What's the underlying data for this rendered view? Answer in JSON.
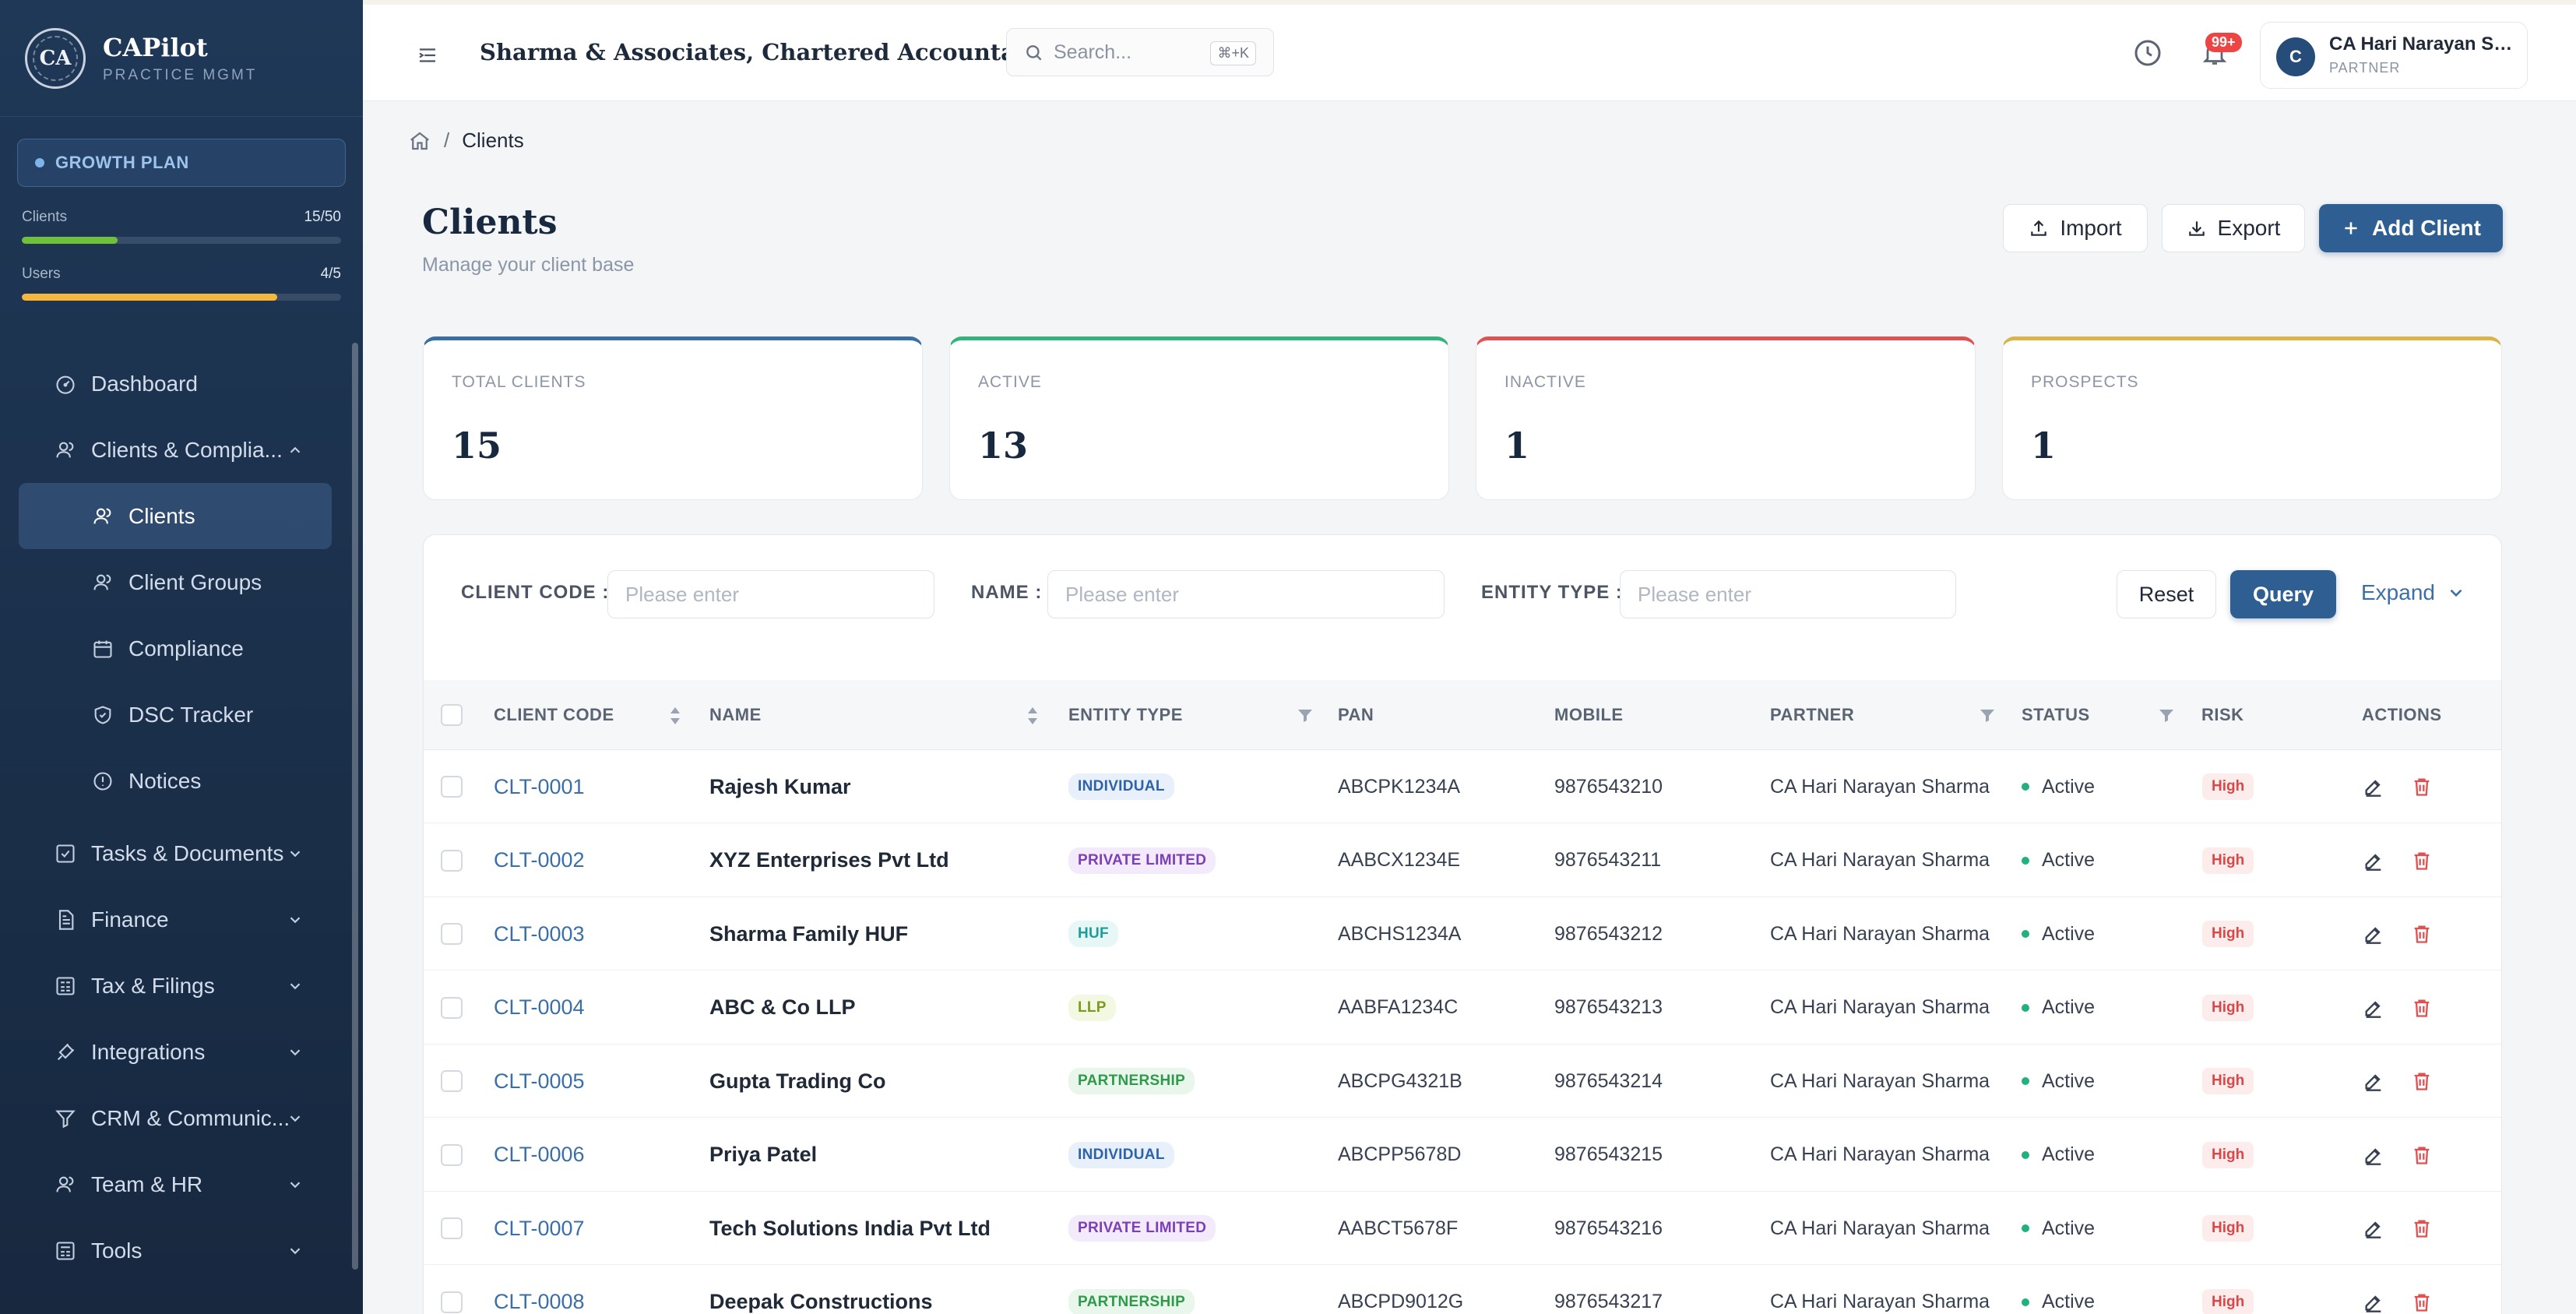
{
  "brand": {
    "logo": "CA",
    "name": "CAPilot",
    "subtitle": "PRACTICE MGMT"
  },
  "plan": {
    "label": "GROWTH PLAN"
  },
  "usage": [
    {
      "label": "Clients",
      "value": "15/50",
      "fraction": 0.3,
      "color": "#6fc13b"
    },
    {
      "label": "Users",
      "value": "4/5",
      "fraction": 0.8,
      "color": "#f5b83d"
    }
  ],
  "nav": [
    {
      "label": "Dashboard",
      "icon": "dashboard-icon"
    },
    {
      "label": "Clients & Complia...",
      "icon": "users-icon",
      "expanded": true
    },
    {
      "label": "Clients",
      "icon": "user-icon",
      "sub": true,
      "active": true
    },
    {
      "label": "Client Groups",
      "icon": "users-icon",
      "sub": true
    },
    {
      "label": "Compliance",
      "icon": "calendar-icon",
      "sub": true
    },
    {
      "label": "DSC Tracker",
      "icon": "shield-icon",
      "sub": true
    },
    {
      "label": "Notices",
      "icon": "alert-circle-icon",
      "sub": true
    },
    {
      "label": "Tasks & Documents",
      "icon": "checkbox-icon"
    },
    {
      "label": "Finance",
      "icon": "document-icon"
    },
    {
      "label": "Tax & Filings",
      "icon": "calculator-icon"
    },
    {
      "label": "Integrations",
      "icon": "plug-icon"
    },
    {
      "label": "CRM & Communic...",
      "icon": "funnel-icon"
    },
    {
      "label": "Team & HR",
      "icon": "users-icon"
    },
    {
      "label": "Tools",
      "icon": "calculator-icon"
    }
  ],
  "topbar": {
    "firm_name": "Sharma & Associates, Chartered Accountants",
    "search_placeholder": "Search...",
    "search_shortcut": "⌘+K",
    "notification_count": "99+",
    "user_initial": "C",
    "user_name": "CA Hari Narayan Sh...",
    "user_role": "PARTNER"
  },
  "breadcrumb": {
    "current": "Clients"
  },
  "page": {
    "title": "Clients",
    "subtitle": "Manage your client base"
  },
  "actions": {
    "import": "Import",
    "export": "Export",
    "add": "Add Client"
  },
  "stats": [
    {
      "label": "TOTAL CLIENTS",
      "value": "15",
      "color": "#3a6ea5"
    },
    {
      "label": "ACTIVE",
      "value": "13",
      "color": "#34b27b"
    },
    {
      "label": "INACTIVE",
      "value": "1",
      "color": "#e05252"
    },
    {
      "label": "PROSPECTS",
      "value": "1",
      "color": "#d9b44a"
    }
  ],
  "filters": {
    "client_code_label": "CLIENT CODE :",
    "name_label": "NAME :",
    "entity_type_label": "ENTITY TYPE :",
    "placeholder": "Please enter",
    "reset": "Reset",
    "query": "Query",
    "expand": "Expand"
  },
  "table": {
    "headers": {
      "code": "CLIENT CODE",
      "name": "NAME",
      "entity": "ENTITY TYPE",
      "pan": "PAN",
      "mobile": "MOBILE",
      "partner": "PARTNER",
      "status": "STATUS",
      "risk": "RISK",
      "actions": "ACTIONS"
    },
    "rows": [
      {
        "code": "CLT-0001",
        "name": "Rajesh Kumar",
        "entity": "INDIVIDUAL",
        "pan": "ABCPK1234A",
        "mobile": "9876543210",
        "partner": "CA Hari Narayan Sharma",
        "status": "Active",
        "risk": "High"
      },
      {
        "code": "CLT-0002",
        "name": "XYZ Enterprises Pvt Ltd",
        "entity": "PRIVATE LIMITED",
        "pan": "AABCX1234E",
        "mobile": "9876543211",
        "partner": "CA Hari Narayan Sharma",
        "status": "Active",
        "risk": "High"
      },
      {
        "code": "CLT-0003",
        "name": "Sharma Family HUF",
        "entity": "HUF",
        "pan": "ABCHS1234A",
        "mobile": "9876543212",
        "partner": "CA Hari Narayan Sharma",
        "status": "Active",
        "risk": "High"
      },
      {
        "code": "CLT-0004",
        "name": "ABC & Co LLP",
        "entity": "LLP",
        "pan": "AABFA1234C",
        "mobile": "9876543213",
        "partner": "CA Hari Narayan Sharma",
        "status": "Active",
        "risk": "High"
      },
      {
        "code": "CLT-0005",
        "name": "Gupta Trading Co",
        "entity": "PARTNERSHIP",
        "pan": "ABCPG4321B",
        "mobile": "9876543214",
        "partner": "CA Hari Narayan Sharma",
        "status": "Active",
        "risk": "High"
      },
      {
        "code": "CLT-0006",
        "name": "Priya Patel",
        "entity": "INDIVIDUAL",
        "pan": "ABCPP5678D",
        "mobile": "9876543215",
        "partner": "CA Hari Narayan Sharma",
        "status": "Active",
        "risk": "High"
      },
      {
        "code": "CLT-0007",
        "name": "Tech Solutions India Pvt Ltd",
        "entity": "PRIVATE LIMITED",
        "pan": "AABCT5678F",
        "mobile": "9876543216",
        "partner": "CA Hari Narayan Sharma",
        "status": "Active",
        "risk": "High"
      },
      {
        "code": "CLT-0008",
        "name": "Deepak Constructions",
        "entity": "PARTNERSHIP",
        "pan": "ABCPD9012G",
        "mobile": "9876543217",
        "partner": "CA Hari Narayan Sharma",
        "status": "Active",
        "risk": "High"
      }
    ]
  },
  "entity_colors": {
    "INDIVIDUAL": {
      "fg": "#2f62a8",
      "bg": "#e7f0fb"
    },
    "PRIVATE LIMITED": {
      "fg": "#7b3fb6",
      "bg": "#f3ebfb"
    },
    "HUF": {
      "fg": "#1f9c9c",
      "bg": "#e6f7f6"
    },
    "LLP": {
      "fg": "#7d9a1a",
      "bg": "#f3f8e3"
    },
    "PARTNERSHIP": {
      "fg": "#2e9a4a",
      "bg": "#e8f6ec"
    }
  }
}
